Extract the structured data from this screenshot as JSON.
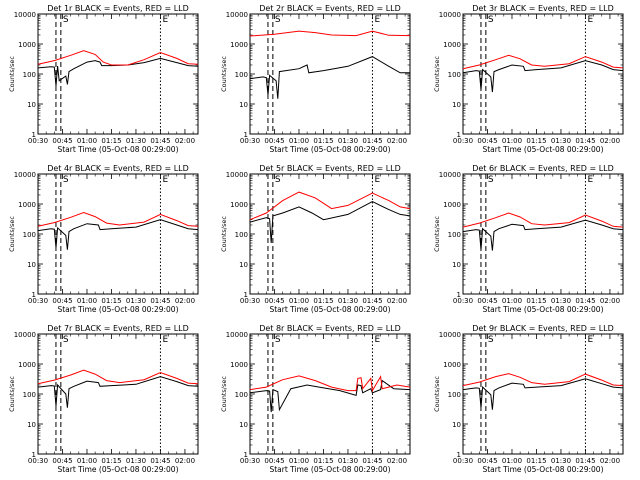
{
  "page": {
    "background": "#ffffff"
  },
  "colors": {
    "events": "#000000",
    "lld": "#ff0000",
    "axes": "#000000"
  },
  "figure": {
    "x_tick_labels": [
      "00:30",
      "00:45",
      "01:00",
      "01:15",
      "01:30",
      "01:45",
      "02:00"
    ],
    "y_tick_labels": [
      "1",
      "10",
      "100",
      "1000",
      "10000"
    ]
  },
  "chart_data": [
    {
      "type": "line",
      "title": "Det 1r BLACK = Events, RED = LLD",
      "xlabel": "Start Time (05-Oct-08 00:29:00)",
      "ylabel": "Counts/sec",
      "xlim": [
        "00:30",
        "02:08"
      ],
      "ylim": [
        1,
        10000
      ],
      "yscale": "log",
      "marker_letters": [
        "S",
        "E"
      ],
      "vlines": [
        {
          "time": "00:41",
          "style": "dashed",
          "label": ""
        },
        {
          "time": "00:44",
          "style": "dashed",
          "label": "S"
        },
        {
          "time": "01:45",
          "style": "dotted",
          "label": "E"
        }
      ],
      "series": [
        {
          "color": "#000000",
          "x": [
            "00:30",
            "00:38",
            "00:40",
            "00:41",
            "00:42",
            "00:43",
            "00:47",
            "00:48",
            "00:49",
            "00:52",
            "01:00",
            "01:05",
            "01:08",
            "01:09",
            "01:15",
            "01:25",
            "01:35",
            "01:45",
            "01:55",
            "02:02",
            "02:08"
          ],
          "y": [
            160,
            175,
            170,
            40,
            185,
            60,
            85,
            45,
            120,
            150,
            250,
            280,
            250,
            190,
            190,
            200,
            240,
            330,
            240,
            190,
            180
          ]
        },
        {
          "color": "#ff0000",
          "x": [
            "00:30",
            "00:40",
            "00:50",
            "00:58",
            "01:05",
            "01:10",
            "01:15",
            "01:25",
            "01:35",
            "01:45",
            "01:55",
            "02:02",
            "02:08"
          ],
          "y": [
            210,
            280,
            420,
            600,
            450,
            250,
            200,
            200,
            300,
            520,
            330,
            220,
            210
          ]
        }
      ]
    },
    {
      "type": "line",
      "title": "Det 2r BLACK = Events, RED = LLD",
      "xlabel": "Start Time (05-Oct-08 00:29:00)",
      "ylabel": "Counts/sec",
      "xlim": [
        "00:30",
        "02:08"
      ],
      "ylim": [
        1,
        10000
      ],
      "yscale": "log",
      "marker_letters": [
        "S",
        "E"
      ],
      "vlines": [
        {
          "time": "00:41",
          "style": "dashed",
          "label": ""
        },
        {
          "time": "00:44",
          "style": "dashed",
          "label": "S"
        },
        {
          "time": "01:45",
          "style": "dotted",
          "label": "E"
        }
      ],
      "series": [
        {
          "color": "#000000",
          "x": [
            "00:30",
            "00:38",
            "00:40",
            "00:41",
            "00:42",
            "00:46",
            "00:47",
            "00:48",
            "01:00",
            "01:05",
            "01:06",
            "01:15",
            "01:30",
            "01:45",
            "01:55",
            "02:02",
            "02:08"
          ],
          "y": [
            70,
            80,
            75,
            20,
            90,
            60,
            15,
            120,
            150,
            200,
            110,
            130,
            180,
            380,
            180,
            110,
            110
          ]
        },
        {
          "color": "#ff0000",
          "x": [
            "00:30",
            "00:45",
            "01:00",
            "01:10",
            "01:20",
            "01:35",
            "01:45",
            "01:55",
            "02:08"
          ],
          "y": [
            1850,
            2100,
            2700,
            2400,
            2000,
            1900,
            2700,
            1950,
            1900
          ]
        }
      ]
    },
    {
      "type": "line",
      "title": "Det 3r BLACK = Events, RED = LLD",
      "xlabel": "Start Time (05-Oct-08 00:29:00)",
      "ylabel": "Counts/sec",
      "xlim": [
        "00:30",
        "02:08"
      ],
      "ylim": [
        1,
        10000
      ],
      "yscale": "log",
      "marker_letters": [
        "S",
        "E"
      ],
      "vlines": [
        {
          "time": "00:41",
          "style": "dashed",
          "label": ""
        },
        {
          "time": "00:44",
          "style": "dashed",
          "label": "S"
        },
        {
          "time": "01:45",
          "style": "dotted",
          "label": "E"
        }
      ],
      "series": [
        {
          "color": "#000000",
          "x": [
            "00:30",
            "00:38",
            "00:40",
            "00:41",
            "00:42",
            "00:47",
            "00:48",
            "00:49",
            "00:52",
            "01:00",
            "01:07",
            "01:08",
            "01:15",
            "01:30",
            "01:45",
            "01:55",
            "02:02",
            "02:08"
          ],
          "y": [
            110,
            130,
            125,
            30,
            140,
            80,
            25,
            120,
            140,
            200,
            180,
            130,
            140,
            160,
            280,
            200,
            140,
            130
          ]
        },
        {
          "color": "#ff0000",
          "x": [
            "00:30",
            "00:40",
            "00:50",
            "00:58",
            "01:05",
            "01:12",
            "01:20",
            "01:35",
            "01:45",
            "01:55",
            "02:02",
            "02:08"
          ],
          "y": [
            150,
            200,
            300,
            420,
            320,
            200,
            180,
            220,
            380,
            250,
            170,
            160
          ]
        }
      ]
    },
    {
      "type": "line",
      "title": "Det 4r BLACK = Events, RED = LLD",
      "xlabel": "Start Time (05-Oct-08 00:29:00)",
      "ylabel": "Counts/sec",
      "xlim": [
        "00:30",
        "02:08"
      ],
      "ylim": [
        1,
        10000
      ],
      "yscale": "log",
      "marker_letters": [
        "S",
        "E"
      ],
      "vlines": [
        {
          "time": "00:41",
          "style": "dashed",
          "label": ""
        },
        {
          "time": "00:44",
          "style": "dashed",
          "label": "S"
        },
        {
          "time": "01:45",
          "style": "dotted",
          "label": "E"
        }
      ],
      "series": [
        {
          "color": "#000000",
          "x": [
            "00:30",
            "00:38",
            "00:40",
            "00:41",
            "00:42",
            "00:47",
            "00:48",
            "00:49",
            "00:52",
            "01:00",
            "01:07",
            "01:08",
            "01:15",
            "01:30",
            "01:45",
            "01:55",
            "02:02",
            "02:08"
          ],
          "y": [
            130,
            150,
            145,
            35,
            160,
            90,
            30,
            120,
            150,
            220,
            200,
            140,
            150,
            170,
            300,
            200,
            150,
            140
          ]
        },
        {
          "color": "#ff0000",
          "x": [
            "00:30",
            "00:40",
            "00:50",
            "00:58",
            "01:05",
            "01:12",
            "01:20",
            "01:35",
            "01:45",
            "01:55",
            "02:02",
            "02:08"
          ],
          "y": [
            180,
            240,
            360,
            520,
            380,
            230,
            200,
            250,
            450,
            280,
            190,
            180
          ]
        }
      ]
    },
    {
      "type": "line",
      "title": "Det 5r BLACK = Events, RED = LLD",
      "xlabel": "Start Time (05-Oct-08 00:29:00)",
      "ylabel": "Counts/sec",
      "xlim": [
        "00:30",
        "02:08"
      ],
      "ylim": [
        1,
        10000
      ],
      "yscale": "log",
      "marker_letters": [
        "S",
        "E"
      ],
      "vlines": [
        {
          "time": "00:41",
          "style": "dashed",
          "label": ""
        },
        {
          "time": "00:44",
          "style": "dashed",
          "label": "S"
        },
        {
          "time": "01:45",
          "style": "dotted",
          "label": "E"
        }
      ],
      "series": [
        {
          "color": "#000000",
          "x": [
            "00:30",
            "00:40",
            "00:42",
            "00:43",
            "00:44",
            "00:50",
            "01:00",
            "01:08",
            "01:15",
            "01:30",
            "01:45",
            "01:55",
            "02:02",
            "02:08"
          ],
          "y": [
            250,
            350,
            320,
            50,
            400,
            500,
            800,
            500,
            300,
            450,
            1200,
            650,
            450,
            400
          ]
        },
        {
          "color": "#ff0000",
          "x": [
            "00:30",
            "00:40",
            "00:50",
            "01:00",
            "01:10",
            "01:20",
            "01:30",
            "01:45",
            "01:55",
            "02:02",
            "02:08"
          ],
          "y": [
            300,
            500,
            1300,
            2500,
            1600,
            700,
            900,
            2300,
            1300,
            800,
            700
          ]
        }
      ]
    },
    {
      "type": "line",
      "title": "Det 6r BLACK = Events, RED = LLD",
      "xlabel": "Start Time (05-Oct-08 00:29:00)",
      "ylabel": "Counts/sec",
      "xlim": [
        "00:30",
        "02:08"
      ],
      "ylim": [
        1,
        10000
      ],
      "yscale": "log",
      "marker_letters": [
        "S",
        "E"
      ],
      "vlines": [
        {
          "time": "00:41",
          "style": "dashed",
          "label": ""
        },
        {
          "time": "00:44",
          "style": "dashed",
          "label": "S"
        },
        {
          "time": "01:45",
          "style": "dotted",
          "label": "E"
        }
      ],
      "series": [
        {
          "color": "#000000",
          "x": [
            "00:30",
            "00:38",
            "00:40",
            "00:41",
            "00:42",
            "00:47",
            "00:48",
            "00:49",
            "00:52",
            "01:00",
            "01:07",
            "01:08",
            "01:15",
            "01:30",
            "01:45",
            "01:55",
            "02:02",
            "02:08"
          ],
          "y": [
            120,
            140,
            135,
            30,
            150,
            85,
            28,
            120,
            150,
            210,
            190,
            140,
            150,
            170,
            290,
            200,
            150,
            140
          ]
        },
        {
          "color": "#ff0000",
          "x": [
            "00:30",
            "00:40",
            "00:50",
            "00:58",
            "01:05",
            "01:12",
            "01:20",
            "01:35",
            "01:45",
            "01:55",
            "02:02",
            "02:08"
          ],
          "y": [
            170,
            230,
            350,
            500,
            370,
            220,
            200,
            240,
            430,
            270,
            180,
            170
          ]
        }
      ]
    },
    {
      "type": "line",
      "title": "Det 7r BLACK = Events, RED = LLD",
      "xlabel": "Start Time (05-Oct-08 00:29:00)",
      "ylabel": "Counts/sec",
      "xlim": [
        "00:30",
        "02:08"
      ],
      "ylim": [
        1,
        10000
      ],
      "yscale": "log",
      "marker_letters": [
        "S",
        "E"
      ],
      "vlines": [
        {
          "time": "00:41",
          "style": "dashed",
          "label": ""
        },
        {
          "time": "00:44",
          "style": "dashed",
          "label": "S"
        },
        {
          "time": "01:45",
          "style": "dotted",
          "label": "E"
        }
      ],
      "series": [
        {
          "color": "#000000",
          "x": [
            "00:30",
            "00:38",
            "00:40",
            "00:41",
            "00:42",
            "00:47",
            "00:48",
            "00:49",
            "00:52",
            "01:00",
            "01:07",
            "01:08",
            "01:15",
            "01:30",
            "01:45",
            "01:55",
            "02:02",
            "02:08"
          ],
          "y": [
            170,
            190,
            185,
            40,
            200,
            100,
            35,
            150,
            180,
            270,
            240,
            180,
            190,
            210,
            380,
            260,
            190,
            180
          ]
        },
        {
          "color": "#ff0000",
          "x": [
            "00:30",
            "00:40",
            "00:50",
            "00:58",
            "01:05",
            "01:12",
            "01:20",
            "01:35",
            "01:45",
            "01:55",
            "02:02",
            "02:08"
          ],
          "y": [
            220,
            290,
            430,
            620,
            460,
            280,
            240,
            300,
            520,
            330,
            230,
            220
          ]
        }
      ]
    },
    {
      "type": "line",
      "title": "Det 8r BLACK = Events, RED = LLD",
      "xlabel": "Start Time (05-Oct-08 00:29:00)",
      "ylabel": "Counts/sec",
      "xlim": [
        "00:30",
        "02:08"
      ],
      "ylim": [
        1,
        10000
      ],
      "yscale": "log",
      "marker_letters": [
        "S",
        "E"
      ],
      "vlines": [
        {
          "time": "00:41",
          "style": "dashed",
          "label": ""
        },
        {
          "time": "00:44",
          "style": "dashed",
          "label": "S"
        },
        {
          "time": "01:45",
          "style": "dotted",
          "label": "E"
        }
      ],
      "series": [
        {
          "color": "#000000",
          "x": [
            "00:30",
            "00:40",
            "00:42",
            "00:43",
            "00:44",
            "00:47",
            "00:48",
            "00:55",
            "01:05",
            "01:15",
            "01:25",
            "01:35",
            "01:36",
            "01:38",
            "01:39",
            "01:44",
            "01:45",
            "01:50",
            "01:51",
            "01:58",
            "02:08"
          ],
          "y": [
            110,
            130,
            125,
            25,
            140,
            120,
            30,
            150,
            200,
            160,
            130,
            90,
            200,
            190,
            110,
            150,
            110,
            140,
            280,
            150,
            140
          ]
        },
        {
          "color": "#ff0000",
          "x": [
            "00:30",
            "00:40",
            "00:50",
            "01:00",
            "01:10",
            "01:20",
            "01:30",
            "01:35",
            "01:36",
            "01:38",
            "01:39",
            "01:44",
            "01:45",
            "01:50",
            "01:51",
            "02:00",
            "02:08"
          ],
          "y": [
            140,
            170,
            300,
            400,
            280,
            170,
            130,
            130,
            330,
            350,
            150,
            330,
            130,
            380,
            150,
            200,
            170
          ]
        }
      ]
    },
    {
      "type": "line",
      "title": "Det 9r BLACK = Events, RED = LLD",
      "xlabel": "Start Time (05-Oct-08 00:29:00)",
      "ylabel": "Counts/sec",
      "xlim": [
        "00:30",
        "02:08"
      ],
      "ylim": [
        1,
        10000
      ],
      "yscale": "log",
      "marker_letters": [
        "S",
        "E"
      ],
      "vlines": [
        {
          "time": "00:41",
          "style": "dashed",
          "label": ""
        },
        {
          "time": "00:44",
          "style": "dashed",
          "label": "S"
        },
        {
          "time": "01:45",
          "style": "dotted",
          "label": "E"
        }
      ],
      "series": [
        {
          "color": "#000000",
          "x": [
            "00:30",
            "00:38",
            "00:40",
            "00:41",
            "00:42",
            "00:47",
            "00:48",
            "00:49",
            "00:52",
            "01:00",
            "01:07",
            "01:08",
            "01:15",
            "01:30",
            "01:45",
            "01:55",
            "02:02",
            "02:08"
          ],
          "y": [
            140,
            160,
            155,
            35,
            170,
            95,
            30,
            130,
            160,
            230,
            210,
            160,
            170,
            190,
            320,
            220,
            170,
            160
          ]
        },
        {
          "color": "#ff0000",
          "x": [
            "00:30",
            "00:40",
            "00:50",
            "00:58",
            "01:05",
            "01:12",
            "01:20",
            "01:35",
            "01:45",
            "01:55",
            "02:02",
            "02:08"
          ],
          "y": [
            190,
            250,
            380,
            480,
            360,
            240,
            210,
            260,
            460,
            290,
            200,
            190
          ]
        }
      ]
    }
  ]
}
